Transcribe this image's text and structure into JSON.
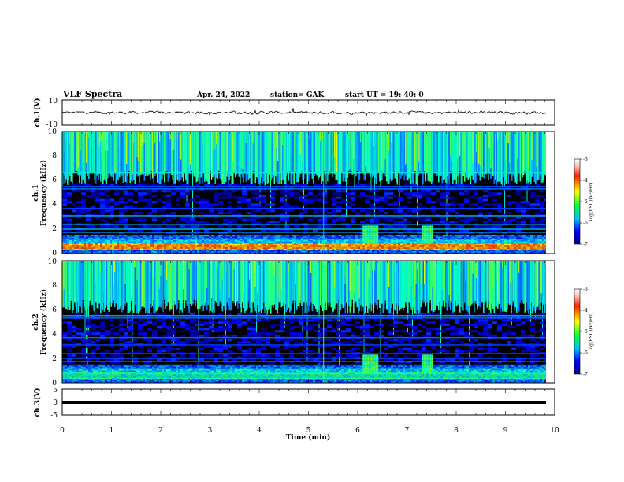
{
  "header": {
    "title": "VLF Spectra",
    "date": "Apr. 24, 2022",
    "station": "station= GAK",
    "start": "start  UT =   19: 40: 0"
  },
  "chart_data": [
    {
      "type": "line",
      "panel": "ch1-waveform",
      "ylabel": "ch.1(V)",
      "ylim": [
        -10,
        10
      ],
      "yticks": [
        "10",
        "-10"
      ],
      "xlim": [
        0,
        10
      ],
      "series": [
        {
          "values_description": "",
          "mean": 0,
          "amplitude": 1.5
        }
      ]
    },
    {
      "type": "heatmap",
      "panel": "ch1-spectrogram",
      "ylabel": "ch.1",
      "ylabel2": "Frequency (kHz)",
      "ylim": [
        0,
        10
      ],
      "yticks": [
        "0",
        "2",
        "4",
        "6",
        "8",
        "10"
      ],
      "xlim": [
        0,
        10
      ],
      "colorbar": {
        "label": "log(PSD)(V²/Hz)",
        "range": [
          -7,
          -3
        ],
        "ticks": [
          "-3",
          "-4",
          "-5",
          "-6",
          "-7"
        ]
      }
    },
    {
      "type": "heatmap",
      "panel": "ch2-spectrogram",
      "ylabel": "ch.2",
      "ylabel2": "Frequency (kHz)",
      "ylim": [
        0,
        10
      ],
      "yticks": [
        "0",
        "2",
        "4",
        "6",
        "8",
        "10"
      ],
      "xlim": [
        0,
        10
      ],
      "colorbar": {
        "label": "log(PSD)(V²/Hz)",
        "range": [
          -7,
          -3
        ],
        "ticks": [
          "-3",
          "-4",
          "-5",
          "-6",
          "-7"
        ]
      }
    },
    {
      "type": "line",
      "panel": "ch3-waveform",
      "ylabel": "ch.3(V)",
      "ylim": [
        -5,
        5
      ],
      "yticks": [
        "5",
        "0",
        "-5"
      ],
      "xlim": [
        0,
        10
      ],
      "xlabel": "Time (min)",
      "xticks": [
        "0",
        "1",
        "2",
        "3",
        "4",
        "5",
        "6",
        "7",
        "8",
        "9",
        "10"
      ],
      "series": [
        {
          "value": -1.0
        }
      ]
    }
  ]
}
